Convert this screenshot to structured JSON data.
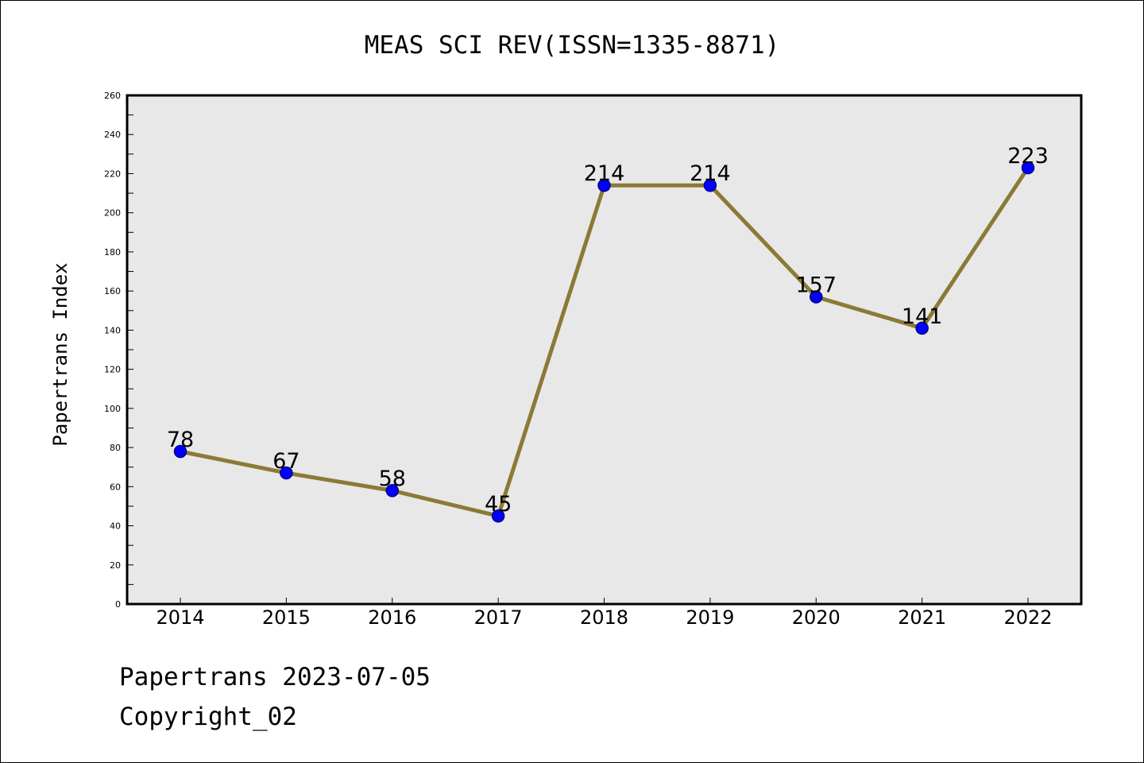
{
  "chart_data": {
    "type": "line",
    "title": "MEAS SCI REV(ISSN=1335-8871)",
    "ylabel": "Papertrans Index",
    "xlabel": "",
    "categories": [
      "2014",
      "2015",
      "2016",
      "2017",
      "2018",
      "2019",
      "2020",
      "2021",
      "2022"
    ],
    "series": [
      {
        "values": [
          78,
          67,
          58,
          45,
          214,
          214,
          157,
          141,
          223
        ]
      }
    ],
    "data_labels": [
      "78",
      "67",
      "58",
      "45",
      "214",
      "214",
      "157",
      "141",
      "223"
    ],
    "ylim": [
      0,
      260
    ],
    "y_ticks": [
      "0",
      "20",
      "40",
      "60",
      "80",
      "100",
      "120",
      "140",
      "160",
      "180",
      "200",
      "220",
      "240",
      "260"
    ],
    "grid": false,
    "legend": "none",
    "colors": {
      "line": "#8b7a36",
      "marker": "#0000ff",
      "marker_edge": "#00008b",
      "plot_background": "#e8e8e8"
    }
  },
  "footer": {
    "line1": "Papertrans 2023-07-05",
    "line2": "Copyright_02"
  }
}
